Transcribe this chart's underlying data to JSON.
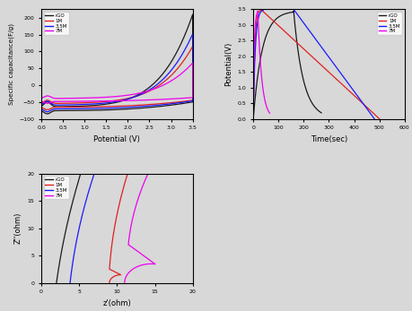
{
  "colors": {
    "rGO": "#1a1a1a",
    "1M": "#e02020",
    "3.5M": "#1a1aff",
    "7M": "#ee00ee"
  },
  "legend_labels": [
    "rGO",
    "1M",
    "3.5M",
    "7M"
  ],
  "cv": {
    "xlabel": "Potential (V)",
    "ylabel": "Specific capacitance(F/g)",
    "xlim": [
      0.0,
      3.5
    ],
    "ylim": [
      -100,
      225
    ],
    "xticks": [
      0.0,
      0.5,
      1.0,
      1.5,
      2.0,
      2.5,
      3.0,
      3.5
    ],
    "yticks": [
      -100,
      -50,
      0,
      50,
      100,
      150,
      200
    ]
  },
  "cd": {
    "xlabel": "Time(sec)",
    "ylabel": "Potential(V)",
    "xlim": [
      0,
      600
    ],
    "ylim": [
      0.0,
      3.5
    ],
    "xticks": [
      0,
      100,
      200,
      300,
      400,
      500,
      600
    ],
    "yticks": [
      0.0,
      0.5,
      1.0,
      1.5,
      2.0,
      2.5,
      3.0,
      3.5
    ]
  },
  "imp": {
    "xlabel": "z'(ohm)",
    "ylabel": "Z''(ohm)",
    "xlim": [
      0,
      20
    ],
    "ylim": [
      0,
      20
    ],
    "xticks": [
      0,
      5,
      10,
      15,
      20
    ],
    "yticks": [
      0,
      5,
      10,
      15,
      20
    ]
  }
}
